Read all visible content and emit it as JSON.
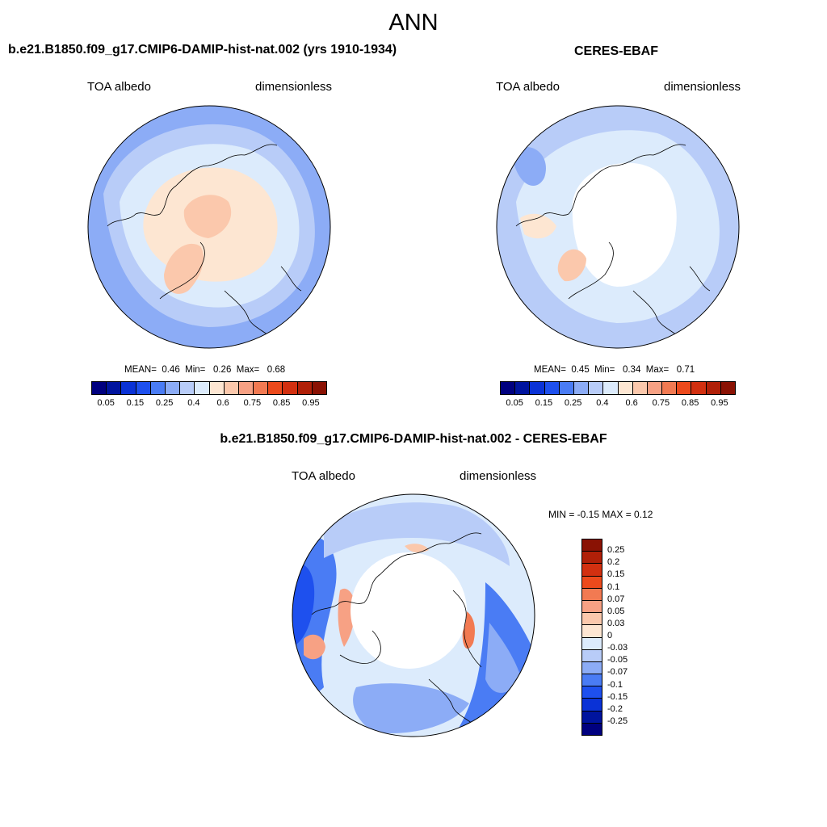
{
  "title": "ANN",
  "panels": {
    "model": {
      "title": "b.e21.B1850.f09_g17.CMIP6-DAMIP-hist-nat.002 (yrs 1910-1934)",
      "var_label": "TOA albedo",
      "units_label": "dimensionless",
      "mean_label": "MEAN=",
      "mean": "0.46",
      "min_label": "Min=",
      "min": "0.26",
      "max_label": "Max=",
      "max": "0.68"
    },
    "obs": {
      "title": "CERES-EBAF",
      "var_label": "TOA albedo",
      "units_label": "dimensionless",
      "mean_label": "MEAN=",
      "mean": "0.45",
      "min_label": "Min=",
      "min": "0.34",
      "max_label": "Max=",
      "max": "0.71"
    },
    "diff": {
      "title": "b.e21.B1850.f09_g17.CMIP6-DAMIP-hist-nat.002 - CERES-EBAF",
      "var_label": "TOA albedo",
      "units_label": "dimensionless",
      "stats_text": "MIN =  -0.15 MAX =   0.12"
    }
  },
  "colorbar_abs": {
    "colors": [
      "#00007f",
      "#00149e",
      "#0a32d6",
      "#1e50ee",
      "#4a7cf4",
      "#8cacf6",
      "#b8ccf8",
      "#dcebfc",
      "#fde6d2",
      "#fbc8ac",
      "#f7a184",
      "#f27a52",
      "#ec4a1c",
      "#d23010",
      "#b02008",
      "#8a1204"
    ],
    "tick_labels": [
      "0.05",
      "0.15",
      "0.25",
      "0.4",
      "0.6",
      "0.75",
      "0.85",
      "0.95"
    ]
  },
  "colorbar_diff": {
    "colors": [
      "#8a1204",
      "#b02008",
      "#d23010",
      "#ec4a1c",
      "#f27a52",
      "#f7a184",
      "#fbc8ac",
      "#fde6d2",
      "#dcebfc",
      "#b8ccf8",
      "#8cacf6",
      "#4a7cf4",
      "#1e50ee",
      "#0a32d6",
      "#00149e",
      "#00007f"
    ],
    "tick_labels": [
      "0.25",
      "0.2",
      "0.15",
      "0.1",
      "0.07",
      "0.05",
      "0.03",
      "0",
      "-0.03",
      "-0.05",
      "-0.07",
      "-0.1",
      "-0.15",
      "-0.2",
      "-0.25"
    ]
  }
}
